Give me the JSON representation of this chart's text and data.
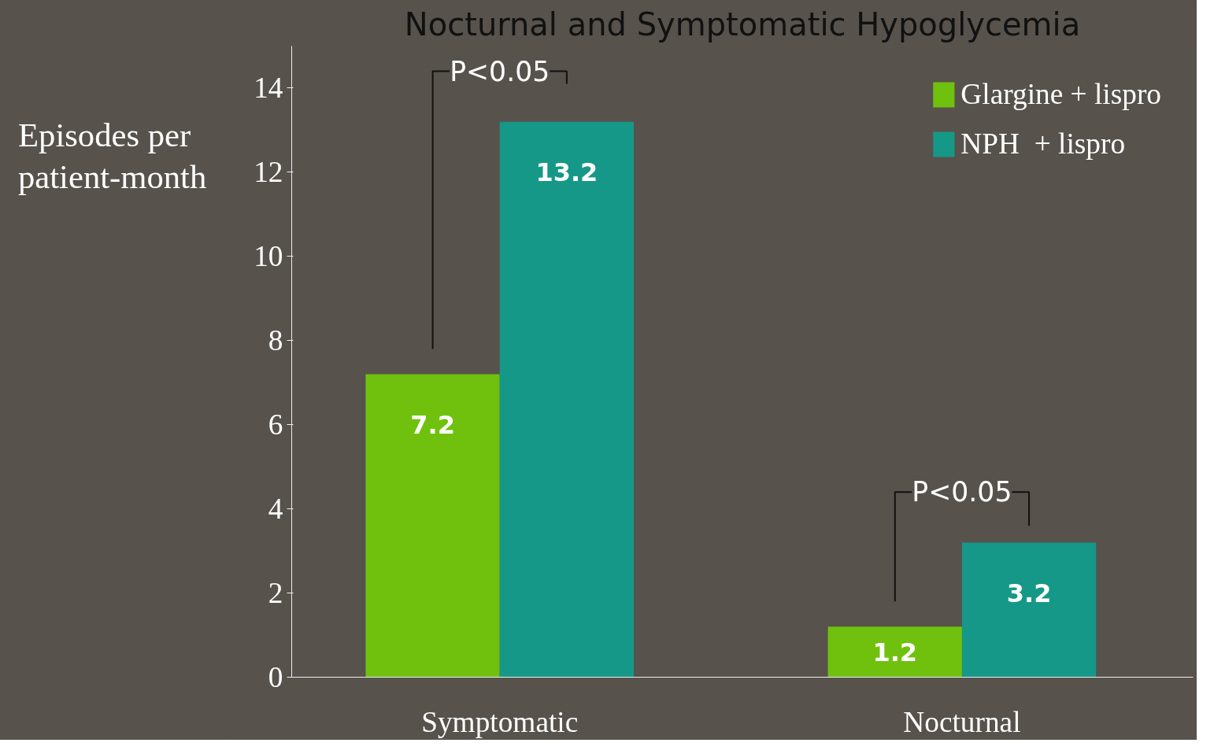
{
  "chart_data": {
    "type": "bar",
    "title": "Nocturnal and Symptomatic Hypoglycemia",
    "ylabel": "Episodes per patient-month",
    "categories": [
      "Symptomatic",
      "Nocturnal"
    ],
    "series": [
      {
        "name": "Glargine + lispro",
        "color": "#6fc10e",
        "values": [
          7.2,
          1.2
        ]
      },
      {
        "name": "NPH  + lispro",
        "color": "#159887",
        "values": [
          13.2,
          3.2
        ]
      }
    ],
    "ylim": [
      0,
      15
    ],
    "yticks": [
      0,
      2,
      4,
      6,
      8,
      10,
      12,
      14
    ],
    "grid": false,
    "legend": "top right",
    "data_labels": true,
    "annotations": [
      "P<0.05",
      "P<0.05"
    ]
  }
}
